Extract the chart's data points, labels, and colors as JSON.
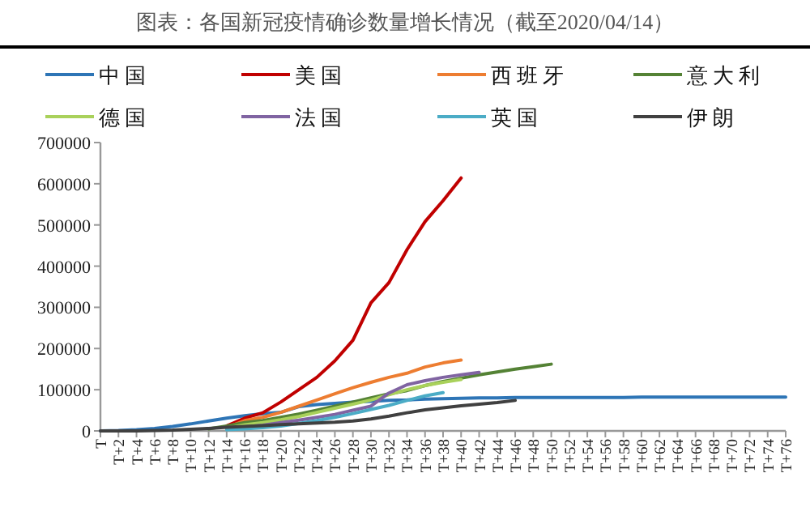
{
  "chart_data": {
    "type": "line",
    "title": "图表：各国新冠疫情确诊数量增长情况（截至2020/04/14）",
    "categories": [
      "T",
      "T+2",
      "T+4",
      "T+6",
      "T+8",
      "T+10",
      "T+12",
      "T+14",
      "T+16",
      "T+18",
      "T+20",
      "T+22",
      "T+24",
      "T+26",
      "T+28",
      "T+30",
      "T+32",
      "T+34",
      "T+36",
      "T+38",
      "T+40",
      "T+42",
      "T+44",
      "T+46",
      "T+48",
      "T+50",
      "T+52",
      "T+54",
      "T+56",
      "T+58",
      "T+60",
      "T+62",
      "T+64",
      "T+66",
      "T+68",
      "T+70",
      "T+72",
      "T+74",
      "T+76"
    ],
    "ylim": [
      0,
      700000
    ],
    "yticks": [
      0,
      100000,
      200000,
      300000,
      400000,
      500000,
      600000,
      700000
    ],
    "grid": false,
    "legend": "top",
    "marker": "none",
    "line_style": "solid",
    "series": [
      {
        "name": "中国",
        "color": "#2e75b6",
        "values": [
          0,
          1000,
          3000,
          6000,
          11000,
          17000,
          24000,
          31000,
          37000,
          42000,
          45000,
          59000,
          64000,
          67000,
          70000,
          72000,
          74000,
          75000,
          77000,
          78000,
          79000,
          80000,
          80000,
          81000,
          81000,
          81000,
          81000,
          81000,
          81000,
          81000,
          82000,
          82000,
          82000,
          82000,
          82000,
          82000,
          82000,
          82000,
          82000
        ]
      },
      {
        "name": "美国",
        "color": "#c00000",
        "values": [
          null,
          null,
          null,
          null,
          null,
          null,
          null,
          12000,
          31000,
          44000,
          70000,
          100000,
          130000,
          170000,
          220000,
          311000,
          360000,
          440000,
          508000,
          559000,
          614000,
          null,
          null,
          null,
          null,
          null,
          null,
          null,
          null,
          null,
          null,
          null,
          null,
          null,
          null,
          null,
          null,
          null,
          null
        ]
      },
      {
        "name": "西班牙",
        "color": "#ed7d31",
        "values": [
          null,
          null,
          null,
          null,
          null,
          null,
          null,
          8000,
          25000,
          33000,
          45000,
          60000,
          75000,
          90000,
          105000,
          118000,
          130000,
          140000,
          155000,
          165000,
          172000,
          null,
          null,
          null,
          null,
          null,
          null,
          null,
          null,
          null,
          null,
          null,
          null,
          null,
          null,
          null,
          null,
          null,
          null
        ]
      },
      {
        "name": "意大利",
        "color": "#548235",
        "values": [
          null,
          null,
          null,
          null,
          null,
          null,
          5000,
          12000,
          20000,
          25000,
          33000,
          41000,
          50000,
          60000,
          70000,
          80000,
          90000,
          98000,
          110000,
          120000,
          128000,
          136000,
          143000,
          150000,
          156000,
          162000,
          null,
          null,
          null,
          null,
          null,
          null,
          null,
          null,
          null,
          null,
          null,
          null,
          null
        ]
      },
      {
        "name": "德国",
        "color": "#a9d15b",
        "values": [
          null,
          null,
          null,
          null,
          null,
          null,
          null,
          7000,
          15000,
          20000,
          27000,
          35000,
          45000,
          55000,
          65000,
          75000,
          88000,
          100000,
          110000,
          118000,
          125000,
          null,
          null,
          null,
          null,
          null,
          null,
          null,
          null,
          null,
          null,
          null,
          null,
          null,
          null,
          null,
          null,
          null,
          null
        ]
      },
      {
        "name": "法国",
        "color": "#8064a2",
        "values": [
          null,
          null,
          null,
          null,
          null,
          null,
          null,
          6000,
          10000,
          14000,
          20000,
          26000,
          33000,
          40000,
          50000,
          60000,
          92000,
          112000,
          122000,
          130000,
          136000,
          142000,
          null,
          null,
          null,
          null,
          null,
          null,
          null,
          null,
          null,
          null,
          null,
          null,
          null,
          null,
          null,
          null,
          null
        ]
      },
      {
        "name": "英国",
        "color": "#4bacc6",
        "values": [
          null,
          null,
          null,
          null,
          null,
          null,
          null,
          3000,
          5000,
          8000,
          12000,
          18000,
          25000,
          33000,
          42000,
          52000,
          62000,
          74000,
          85000,
          93000,
          null,
          null,
          null,
          null,
          null,
          null,
          null,
          null,
          null,
          null,
          null,
          null,
          null,
          null,
          null,
          null,
          null,
          null,
          null
        ]
      },
      {
        "name": "伊朗",
        "color": "#404040",
        "values": [
          0,
          0,
          0,
          1000,
          2000,
          4000,
          6000,
          9000,
          11000,
          13000,
          15000,
          17000,
          19000,
          21000,
          24000,
          29000,
          36000,
          44000,
          51000,
          56000,
          61000,
          65000,
          69000,
          74000,
          null,
          null,
          null,
          null,
          null,
          null,
          null,
          null,
          null,
          null,
          null,
          null,
          null,
          null,
          null
        ]
      }
    ]
  }
}
